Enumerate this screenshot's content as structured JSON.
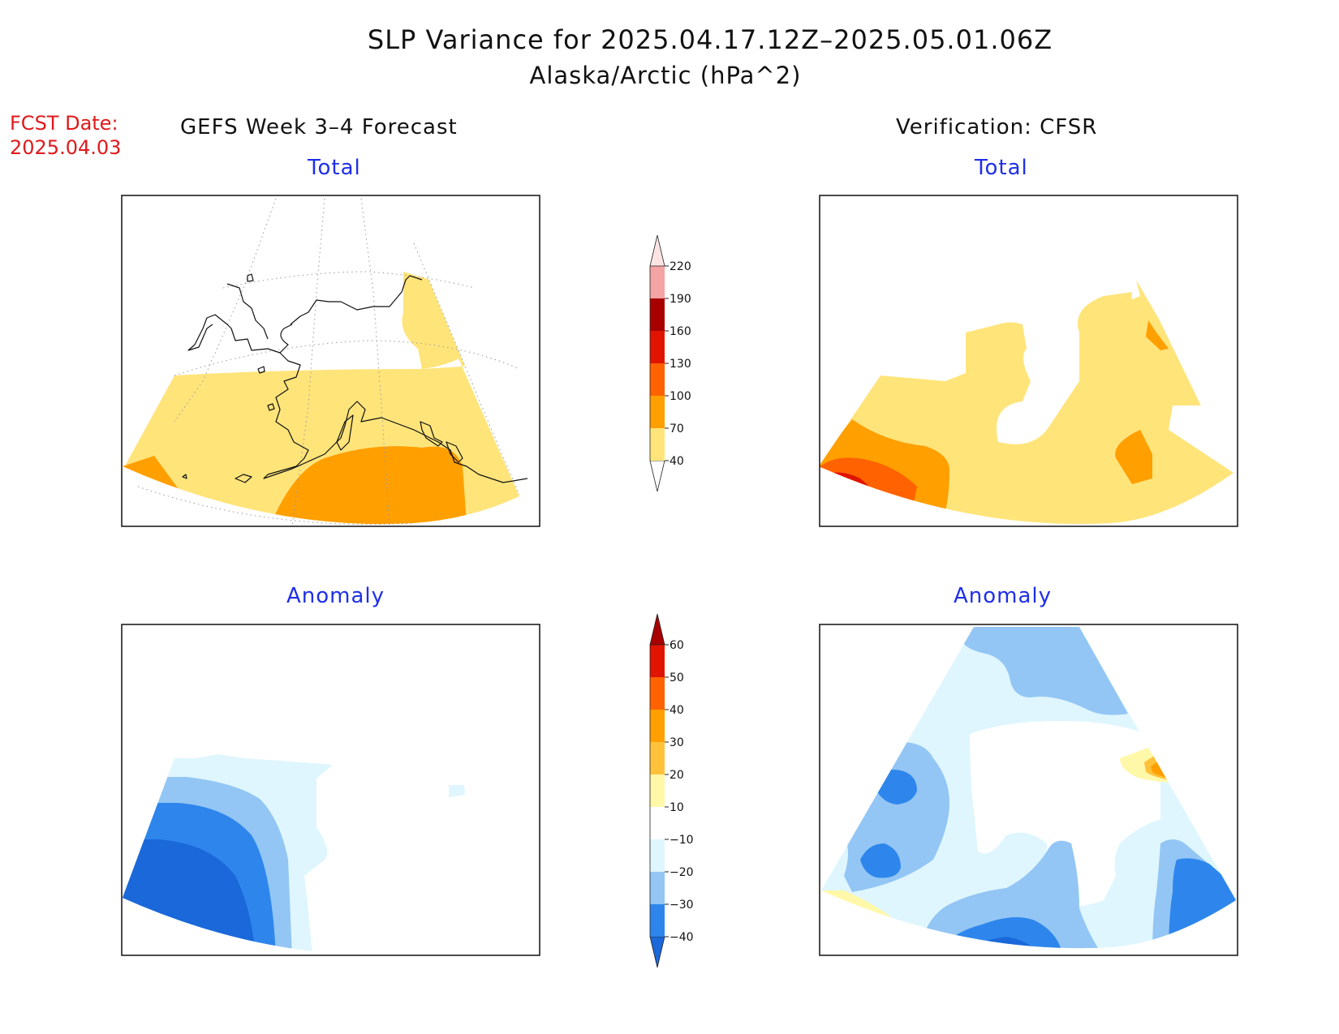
{
  "header": {
    "title_line1": "SLP Variance for 2025.04.17.12Z–2025.05.01.06Z",
    "title_line2": "Alaska/Arctic (hPa^2)",
    "fcst_label": "FCST Date:",
    "fcst_date": "2025.04.03"
  },
  "columns": {
    "left_title": "GEFS Week 3–4 Forecast",
    "right_title": "Verification: CFSR"
  },
  "panels": {
    "total_label": "Total",
    "anomaly_label": "Anomaly"
  },
  "colorbars": {
    "total": {
      "levels": [
        40,
        70,
        100,
        130,
        160,
        190,
        220
      ],
      "labels": [
        "40",
        "70",
        "100",
        "130",
        "160",
        "190",
        "220"
      ],
      "colors": [
        "#ffffff",
        "#ffe47a",
        "#ff9f00",
        "#ff6200",
        "#e01400",
        "#a80000",
        "#f4a4a4",
        "#fde4e4"
      ]
    },
    "anomaly": {
      "levels": [
        -40,
        -30,
        -20,
        -10,
        10,
        20,
        30,
        40,
        50,
        60
      ],
      "labels": [
        "−40",
        "−30",
        "−20",
        "−10",
        "10",
        "20",
        "30",
        "40",
        "50",
        "60"
      ],
      "colors": [
        "#1a68d9",
        "#2e86ec",
        "#93c6f4",
        "#dff6fe",
        "#ffffff",
        "#fff8a8",
        "#ffc23a",
        "#ff9f00",
        "#ff6200",
        "#e01400",
        "#a80000"
      ]
    }
  },
  "map_colors": {
    "t40": "#ffe47a",
    "t70": "#ff9f00",
    "t100": "#ff6200",
    "t130": "#e01400",
    "t160": "#a80000",
    "a_m40": "#1a68d9",
    "a_m30": "#2e86ec",
    "a_m20": "#93c6f4",
    "a_m10": "#dff6fe",
    "a_p10": "#fff8a8",
    "a_p20": "#ffc23a",
    "a_p30": "#ff9f00"
  }
}
